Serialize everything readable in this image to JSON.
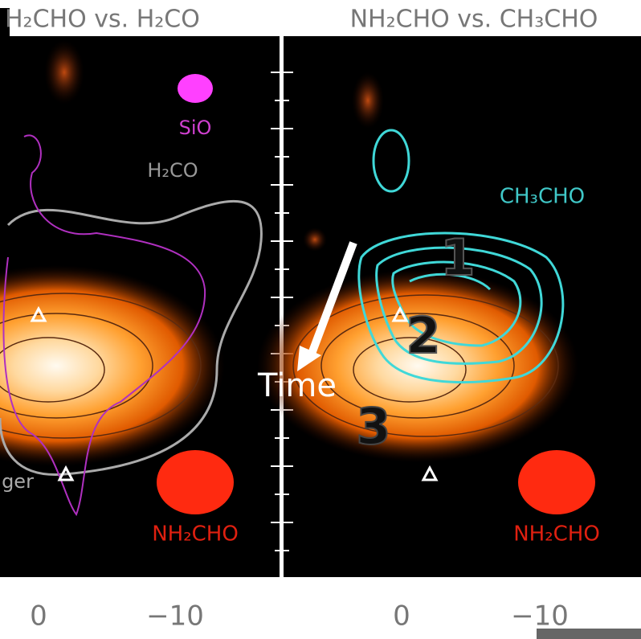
{
  "panels": [
    {
      "title": "H₂CHO vs. H₂CO",
      "labels": [
        "SiO",
        "H₂CO",
        "NH₂CHO",
        "ger"
      ],
      "tick_labels": [
        "0",
        "−10"
      ]
    },
    {
      "title": "NH₂CHO vs. CH₃CHO",
      "labels": [
        "CH₃CHO",
        "NH₂CHO"
      ],
      "tick_labels": [
        "0",
        "−10"
      ]
    }
  ],
  "annotations": {
    "arrow_label": "Time",
    "steps": [
      "1",
      "2",
      "3"
    ]
  }
}
